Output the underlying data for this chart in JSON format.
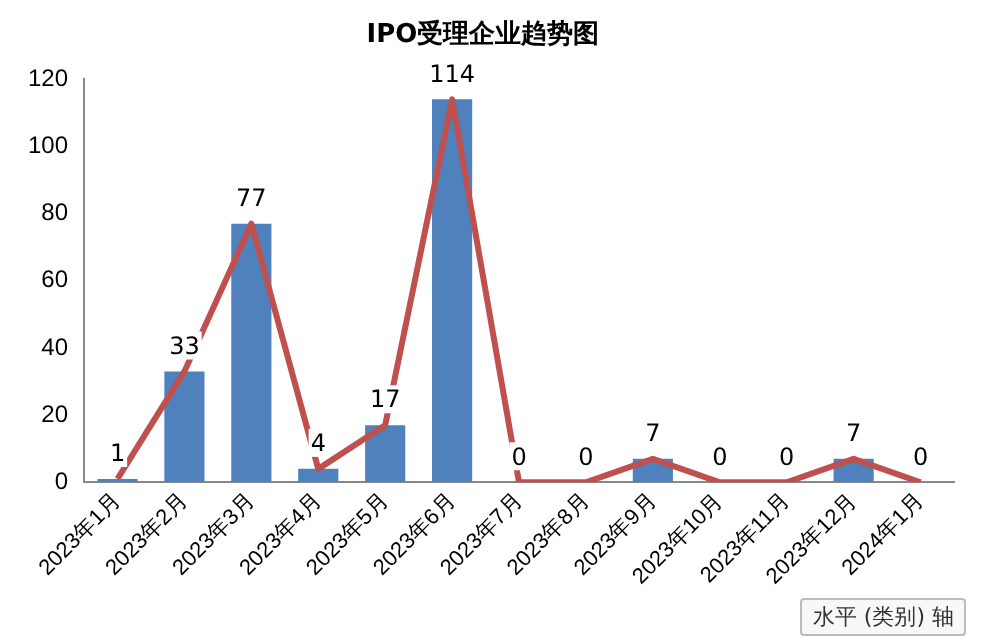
{
  "chart_data": {
    "type": "bar",
    "title": "IPO受理企业趋势图",
    "categories": [
      "2023年1月",
      "2023年2月",
      "2023年3月",
      "2023年4月",
      "2023年5月",
      "2023年6月",
      "2023年7月",
      "2023年8月",
      "2023年9月",
      "2023年10月",
      "2023年11月",
      "2023年12月",
      "2024年1月"
    ],
    "series": [
      {
        "color": "#4f81bd",
        "values": [
          1,
          33,
          77,
          4,
          17,
          114,
          0,
          0,
          7,
          0,
          0,
          7,
          0
        ],
        "value_labels": [
          "1",
          "33",
          "77",
          "4",
          "17",
          "114",
          "0",
          "0",
          "7",
          "0",
          "0",
          "7",
          "0"
        ]
      },
      {
        "type": "line",
        "color": "#c0504d",
        "values": [
          1,
          33,
          77,
          4,
          17,
          114,
          0,
          0,
          7,
          0,
          0,
          7,
          0
        ]
      }
    ],
    "ylim": [
      0,
      120
    ],
    "yticks": [
      0,
      20,
      40,
      60,
      80,
      100,
      120
    ],
    "grid": false,
    "legend": false,
    "marker": "none",
    "annotations": [
      "水平 (类别) 轴"
    ]
  }
}
